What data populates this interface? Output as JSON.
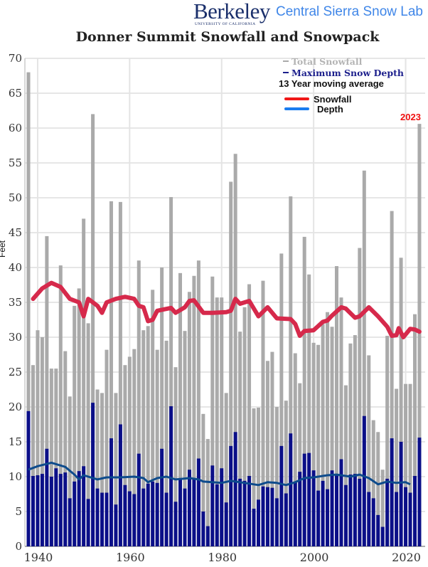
{
  "header": {
    "logo_word": "Berkeley",
    "logo_sub": "UNIVERSITY OF CALIFORNIA",
    "lab_name": "Central Sierra Snow Lab"
  },
  "legend": {
    "total_snowfall": "Total Snowfall",
    "max_depth": "Maximum Snow Depth",
    "moving_avg_title": "13 Year moving average",
    "avg_snowfall": "Snowfall",
    "avg_depth": "Depth"
  },
  "annotation": "2023",
  "colors": {
    "snowfall_bar": "#aaaaaa",
    "depth_bar": "#0b0f88",
    "snowfall_avg": "#d6294b",
    "depth_avg": "#0d4b8c",
    "legend_depth_line": "#1a7cf0",
    "legend_snowfall_line": "#f01818"
  },
  "chart_data": {
    "type": "bar",
    "title": "Donner Summit Snowfall and Snowpack",
    "xlabel": "",
    "ylabel": "Feet",
    "ylim": [
      0,
      70
    ],
    "yticks": [
      0,
      5,
      10,
      15,
      20,
      25,
      30,
      35,
      40,
      45,
      50,
      55,
      60,
      65,
      70
    ],
    "xticks": [
      1940,
      1960,
      1980,
      2000,
      2020
    ],
    "grid": true,
    "legend_position": "top-right",
    "x_start": 1938,
    "x_end": 2023,
    "series": [
      {
        "name": "Total Snowfall",
        "kind": "bar",
        "values": [
          68,
          26,
          31,
          30,
          44.5,
          25.5,
          25.5,
          40.3,
          28,
          21.5,
          34.5,
          37,
          47,
          32,
          62,
          22.5,
          22,
          28.2,
          49.5,
          22,
          49.4,
          26,
          27.2,
          28.3,
          41,
          31,
          31.6,
          36.8,
          28.2,
          40,
          29.5,
          50.1,
          25.7,
          39.2,
          30.9,
          36.5,
          38.8,
          41,
          19,
          15.4,
          38.7,
          35.7,
          35.7,
          22,
          52.3,
          56.3,
          30.8,
          34.3,
          37.6,
          19.8,
          19.9,
          38.1,
          26.6,
          27.9,
          20,
          42,
          20.9,
          50.2,
          27.7,
          23.4,
          44.4,
          39,
          29.2,
          28.9,
          31.9,
          33.6,
          31.5,
          40.2,
          35.7,
          23.1,
          29.1,
          30.3,
          42.8,
          53.9,
          27.4,
          18.1,
          16.4,
          11,
          30.2,
          48.1,
          22.6,
          41.4,
          23.3,
          23.3,
          33.3,
          60.6
        ]
      },
      {
        "name": "Maximum Snow Depth",
        "kind": "bar",
        "values": [
          19.4,
          10.1,
          10.2,
          10.4,
          14,
          10,
          11.2,
          10.4,
          10.6,
          6.9,
          9.3,
          10.8,
          11.5,
          6.8,
          20.6,
          8.3,
          7.7,
          7.7,
          15.5,
          6,
          17.5,
          8.8,
          7.9,
          7.5,
          13.3,
          8.3,
          9,
          9.3,
          9.1,
          14,
          7.7,
          20.1,
          6.4,
          9.8,
          8.3,
          11,
          9.6,
          12.6,
          5,
          2.9,
          11.6,
          8.9,
          11.2,
          6.3,
          14.4,
          16.4,
          9.7,
          9.4,
          10.1,
          5.4,
          6.7,
          8.6,
          8.5,
          8.4,
          6.9,
          14.4,
          7.6,
          16.2,
          9.2,
          10.7,
          13.3,
          13.4,
          10.9,
          8,
          9.4,
          8.2,
          10.9,
          10.2,
          12.5,
          8.8,
          10.3,
          10.4,
          9.7,
          18.7,
          7.8,
          6.9,
          4.5,
          2.8,
          9.7,
          15.5,
          7.8,
          15,
          8.5,
          7.7,
          10.1,
          15.6
        ]
      },
      {
        "name": "13 Year moving average - Snowfall",
        "kind": "line",
        "points": [
          [
            1939,
            35.5
          ],
          [
            1941,
            37
          ],
          [
            1943,
            37.8
          ],
          [
            1945,
            37.2
          ],
          [
            1947,
            35.5
          ],
          [
            1949,
            35
          ],
          [
            1950,
            33
          ],
          [
            1951,
            35.5
          ],
          [
            1953,
            34.5
          ],
          [
            1954,
            33.5
          ],
          [
            1955,
            35
          ],
          [
            1957,
            35.5
          ],
          [
            1959,
            35.8
          ],
          [
            1961,
            35.5
          ],
          [
            1962,
            34.5
          ],
          [
            1963,
            34.3
          ],
          [
            1964,
            32.3
          ],
          [
            1965,
            32.5
          ],
          [
            1966,
            33.8
          ],
          [
            1969,
            34.2
          ],
          [
            1970,
            33.5
          ],
          [
            1972,
            34.3
          ],
          [
            1973,
            35.2
          ],
          [
            1974,
            35.3
          ],
          [
            1976,
            33.5
          ],
          [
            1978,
            33.5
          ],
          [
            1981,
            33.6
          ],
          [
            1982,
            33.8
          ],
          [
            1983,
            35.5
          ],
          [
            1984,
            34.8
          ],
          [
            1986,
            35.2
          ],
          [
            1988,
            33
          ],
          [
            1990,
            34.3
          ],
          [
            1992,
            32.7
          ],
          [
            1995,
            32.6
          ],
          [
            1996,
            31.9
          ],
          [
            1997,
            30.2
          ],
          [
            1998,
            30.9
          ],
          [
            2000,
            31
          ],
          [
            2002,
            32.2
          ],
          [
            2003,
            32.4
          ],
          [
            2004,
            33.1
          ],
          [
            2006,
            34.3
          ],
          [
            2007,
            34.1
          ],
          [
            2009,
            32.8
          ],
          [
            2010,
            33
          ],
          [
            2012,
            34.3
          ],
          [
            2014,
            33
          ],
          [
            2016,
            31.5
          ],
          [
            2017,
            30.2
          ],
          [
            2018,
            30.3
          ],
          [
            2018.5,
            31.3
          ],
          [
            2019.5,
            30
          ],
          [
            2021,
            31.2
          ],
          [
            2022,
            31.1
          ],
          [
            2023,
            30.8
          ]
        ]
      },
      {
        "name": "13 Year moving average - Depth",
        "kind": "line",
        "points": [
          [
            1938,
            11
          ],
          [
            1940,
            11.5
          ],
          [
            1943,
            12
          ],
          [
            1946,
            11.4
          ],
          [
            1948,
            10.3
          ],
          [
            1949,
            9.6
          ],
          [
            1950,
            10.2
          ],
          [
            1953,
            9.6
          ],
          [
            1955,
            9.9
          ],
          [
            1958,
            9.9
          ],
          [
            1961,
            10
          ],
          [
            1963,
            9.8
          ],
          [
            1964,
            9.2
          ],
          [
            1966,
            9.8
          ],
          [
            1968,
            10
          ],
          [
            1970,
            9.6
          ],
          [
            1973,
            9.8
          ],
          [
            1975,
            9.6
          ],
          [
            1976,
            9.3
          ],
          [
            1980,
            9.1
          ],
          [
            1982,
            9.4
          ],
          [
            1985,
            9.1
          ],
          [
            1988,
            8.8
          ],
          [
            1990,
            9.2
          ],
          [
            1992,
            9.1
          ],
          [
            1994,
            8.8
          ],
          [
            1996,
            9.2
          ],
          [
            1998,
            9.8
          ],
          [
            2000,
            9.9
          ],
          [
            2003,
            10.2
          ],
          [
            2005,
            10.3
          ],
          [
            2008,
            10.0
          ],
          [
            2010,
            10.3
          ],
          [
            2012,
            9.8
          ],
          [
            2014,
            8.9
          ],
          [
            2016,
            9.3
          ],
          [
            2018,
            9.1
          ],
          [
            2020,
            9.2
          ],
          [
            2021,
            8.9
          ]
        ]
      }
    ]
  }
}
